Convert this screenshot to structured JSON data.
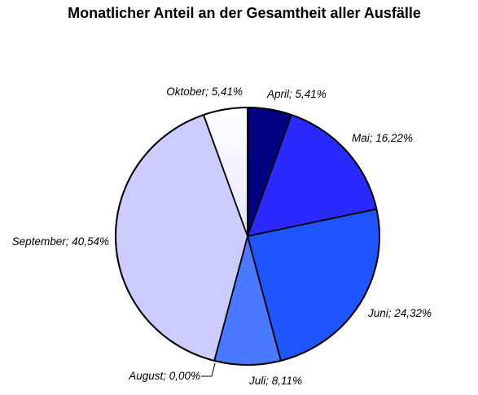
{
  "chart_data": {
    "type": "pie",
    "title": "Monatlicher Anteil an der Gesamtheit aller Ausfälle",
    "slices": [
      {
        "name": "April",
        "value": 5.41,
        "label": "April; 5,41%",
        "color": "#000080"
      },
      {
        "name": "Mai",
        "value": 16.22,
        "label": "Mai; 16,22%",
        "color": "#2a2aff"
      },
      {
        "name": "Juni",
        "value": 24.32,
        "label": "Juni; 24,32%",
        "color": "#1f55ff"
      },
      {
        "name": "Juli",
        "value": 8.11,
        "label": "Juli; 8,11%",
        "color": "#4a78ff"
      },
      {
        "name": "August",
        "value": 0.0,
        "label": "August; 0,00%",
        "color": "#7a9aff"
      },
      {
        "name": "September",
        "value": 40.54,
        "label": "September; 40,54%",
        "color": "#ccccff"
      },
      {
        "name": "Oktober",
        "value": 5.41,
        "label": "Oktober; 5,41%",
        "color": "#f2f2ff"
      }
    ]
  }
}
